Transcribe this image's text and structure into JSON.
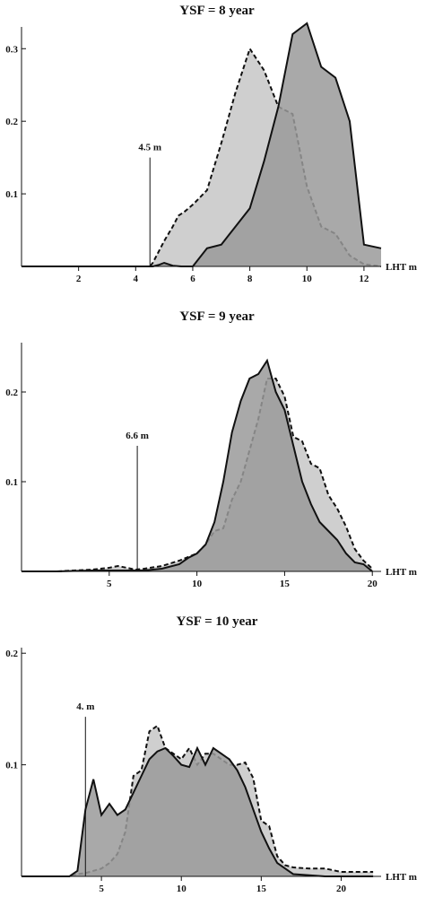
{
  "chart_data": [
    {
      "type": "area",
      "title": "YSF = 8 year",
      "xlabel": "LHT m",
      "ylabel": "",
      "xlim": [
        0,
        12.6
      ],
      "ylim": [
        0,
        0.33
      ],
      "xticks": [
        2,
        4,
        6,
        8,
        10,
        12
      ],
      "xtick_labels": [
        "2",
        "4",
        "6",
        "8",
        "10",
        "12"
      ],
      "yticks": [
        0.1,
        0.2,
        0.3
      ],
      "ytick_labels": [
        "0.1",
        "0.2",
        "0.3"
      ],
      "annotation": {
        "label": "4.5 m",
        "x": 4.5,
        "y": 0.15
      },
      "series": [
        {
          "style": "dashed",
          "fill": "#cfcfcf",
          "x": [
            0,
            1,
            2,
            3,
            4,
            4.5,
            4.6,
            4.8,
            5,
            5.3,
            5.5,
            5.7,
            6,
            6.5,
            7,
            7.5,
            8,
            8.5,
            9,
            9.5,
            10,
            10.5,
            11,
            11.5,
            12,
            12.6
          ],
          "y": [
            0,
            0,
            0,
            0,
            0,
            0,
            0.005,
            0.02,
            0.035,
            0.055,
            0.07,
            0.075,
            0.085,
            0.105,
            0.17,
            0.24,
            0.3,
            0.27,
            0.22,
            0.21,
            0.11,
            0.055,
            0.045,
            0.015,
            0.003,
            0
          ]
        },
        {
          "style": "solid",
          "fill": "#9a9a9a",
          "x": [
            0,
            1,
            2,
            3,
            4,
            4.6,
            4.8,
            5,
            5.3,
            5.6,
            6,
            6.5,
            7,
            7.5,
            8,
            8.5,
            9,
            9.5,
            10,
            10.5,
            11,
            11.5,
            12,
            12.6
          ],
          "y": [
            0,
            0,
            0,
            0,
            0,
            0,
            0.002,
            0.005,
            0.001,
            0,
            0,
            0.025,
            0.03,
            0.055,
            0.08,
            0.145,
            0.22,
            0.32,
            0.335,
            0.275,
            0.26,
            0.2,
            0.03,
            0.025
          ]
        }
      ]
    },
    {
      "type": "area",
      "title": "YSF = 9 year",
      "xlabel": "LHT m",
      "ylabel": "",
      "xlim": [
        0,
        20.5
      ],
      "ylim": [
        0,
        0.255
      ],
      "xticks": [
        5,
        10,
        15,
        20
      ],
      "xtick_labels": [
        "5",
        "10",
        "15",
        "20"
      ],
      "yticks": [
        0.1,
        0.2
      ],
      "ytick_labels": [
        "0.1",
        "0.2"
      ],
      "annotation": {
        "label": "6.6 m",
        "x": 6.6,
        "y": 0.14
      },
      "series": [
        {
          "style": "dashed",
          "fill": "#cfcfcf",
          "x": [
            0,
            2,
            4,
            5,
            5.5,
            6,
            6.5,
            7,
            8,
            9,
            10,
            10.5,
            11,
            11.5,
            12,
            12.5,
            13,
            13.5,
            14,
            14.5,
            15,
            15.5,
            16,
            16.5,
            17,
            17.5,
            18,
            18.5,
            19,
            19.5,
            20
          ],
          "y": [
            0,
            0,
            0.002,
            0.004,
            0.006,
            0.004,
            0.002,
            0.003,
            0.006,
            0.012,
            0.02,
            0.03,
            0.045,
            0.048,
            0.08,
            0.1,
            0.135,
            0.17,
            0.215,
            0.215,
            0.195,
            0.15,
            0.145,
            0.12,
            0.115,
            0.085,
            0.07,
            0.05,
            0.025,
            0.012,
            0.003
          ]
        },
        {
          "style": "solid",
          "fill": "#9a9a9a",
          "x": [
            0,
            2,
            4,
            5,
            6,
            7,
            8,
            9,
            9.5,
            10,
            10.5,
            11,
            11.5,
            12,
            12.5,
            13,
            13.5,
            14,
            14.5,
            15,
            15.5,
            16,
            16.5,
            17,
            17.5,
            18,
            18.5,
            19,
            19.5,
            20
          ],
          "y": [
            0,
            0,
            0.001,
            0.001,
            0.001,
            0.001,
            0.003,
            0.008,
            0.015,
            0.02,
            0.03,
            0.055,
            0.1,
            0.155,
            0.19,
            0.215,
            0.22,
            0.235,
            0.2,
            0.18,
            0.14,
            0.1,
            0.075,
            0.055,
            0.045,
            0.035,
            0.02,
            0.01,
            0.008,
            0
          ]
        }
      ]
    },
    {
      "type": "area",
      "title": "YSF = 10 year",
      "xlabel": "LHT m",
      "ylabel": "",
      "xlim": [
        0,
        22.5
      ],
      "ylim": [
        0,
        0.205
      ],
      "xticks": [
        5,
        10,
        15,
        20
      ],
      "xtick_labels": [
        "5",
        "10",
        "15",
        "20"
      ],
      "yticks": [
        0.1,
        0.2
      ],
      "ytick_labels": [
        "0.1",
        "0.2"
      ],
      "annotation": {
        "label": "4. m",
        "x": 4,
        "y": 0.143
      },
      "series": [
        {
          "style": "dashed",
          "fill": "#cfcfcf",
          "x": [
            0,
            1,
            2,
            3,
            3.5,
            4,
            4.5,
            5,
            5.5,
            6,
            6.5,
            7,
            7.5,
            8,
            8.5,
            9,
            9.5,
            10,
            10.5,
            11,
            11.5,
            12,
            12.5,
            13,
            13.5,
            14,
            14.5,
            15,
            15.5,
            16,
            16.5,
            17,
            18,
            19,
            20,
            21,
            22
          ],
          "y": [
            0,
            0,
            0,
            0,
            0.002,
            0.003,
            0.005,
            0.007,
            0.012,
            0.02,
            0.04,
            0.09,
            0.095,
            0.13,
            0.135,
            0.115,
            0.11,
            0.105,
            0.115,
            0.1,
            0.11,
            0.11,
            0.105,
            0.1,
            0.1,
            0.102,
            0.088,
            0.05,
            0.045,
            0.018,
            0.01,
            0.008,
            0.007,
            0.007,
            0.004,
            0.004,
            0.004
          ]
        },
        {
          "style": "solid",
          "fill": "#9a9a9a",
          "x": [
            0,
            1,
            2,
            3,
            3.5,
            4,
            4.5,
            5,
            5.5,
            6,
            6.5,
            7,
            7.5,
            8,
            8.5,
            9,
            9.5,
            10,
            10.5,
            11,
            11.5,
            12,
            12.5,
            13,
            13.5,
            14,
            14.5,
            15,
            15.5,
            16,
            16.5,
            17,
            18,
            19,
            20,
            21,
            22
          ],
          "y": [
            0,
            0,
            0,
            0,
            0.005,
            0.06,
            0.087,
            0.055,
            0.065,
            0.055,
            0.06,
            0.075,
            0.09,
            0.105,
            0.112,
            0.115,
            0.108,
            0.1,
            0.098,
            0.115,
            0.1,
            0.115,
            0.11,
            0.105,
            0.095,
            0.08,
            0.06,
            0.04,
            0.025,
            0.012,
            0.007,
            0.002,
            0.001,
            0,
            0,
            0,
            0
          ]
        }
      ]
    }
  ]
}
